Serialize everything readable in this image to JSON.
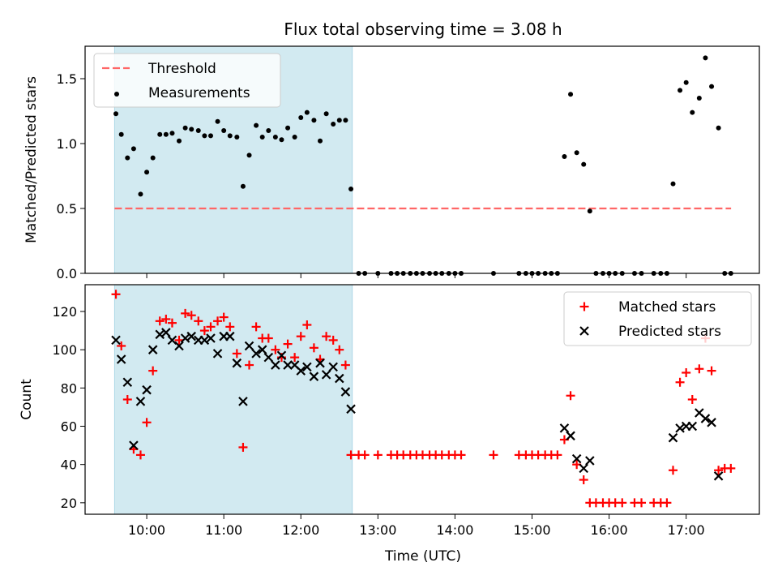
{
  "figure": {
    "title": "Flux total observing time = 3.08 h",
    "xlabel": "Time (UTC)"
  },
  "chart_data": [
    {
      "type": "scatter",
      "panel": "top",
      "ylabel": "Matched/Predicted stars",
      "xlim": [
        9.2,
        17.95
      ],
      "ylim": [
        0,
        1.75
      ],
      "yticks": [
        0.0,
        0.5,
        1.0,
        1.5
      ],
      "shaded_span": {
        "x": [
          9.583,
          12.667
        ],
        "color": "#add8e6"
      },
      "legend": {
        "position": "upper-left",
        "entries": [
          "Threshold",
          "Measurements"
        ]
      },
      "series": [
        {
          "name": "Threshold",
          "kind": "line",
          "color": "#ff6666",
          "dashed": true,
          "x": [
            9.583,
            17.583
          ],
          "y": [
            0.5,
            0.5
          ]
        },
        {
          "name": "Measurements",
          "kind": "dot",
          "color": "#000000",
          "x": [
            9.6,
            9.67,
            9.75,
            9.83,
            9.92,
            10.0,
            10.08,
            10.17,
            10.25,
            10.33,
            10.42,
            10.5,
            10.58,
            10.67,
            10.75,
            10.83,
            10.92,
            11.0,
            11.08,
            11.17,
            11.25,
            11.33,
            11.42,
            11.5,
            11.58,
            11.67,
            11.75,
            11.83,
            11.92,
            12.0,
            12.08,
            12.17,
            12.25,
            12.33,
            12.42,
            12.5,
            12.58,
            12.65,
            12.75,
            12.83,
            13.0,
            13.17,
            13.25,
            13.33,
            13.42,
            13.5,
            13.58,
            13.67,
            13.75,
            13.83,
            13.92,
            14.0,
            14.08,
            14.5,
            14.83,
            14.92,
            15.0,
            15.08,
            15.17,
            15.25,
            15.33,
            15.42,
            15.5,
            15.58,
            15.67,
            15.75,
            15.83,
            15.92,
            16.0,
            16.08,
            16.17,
            16.33,
            16.42,
            16.58,
            16.67,
            16.75,
            16.83,
            16.92,
            17.0,
            17.08,
            17.17,
            17.25,
            17.33,
            17.42,
            17.5,
            17.58
          ],
          "y": [
            1.23,
            1.07,
            0.89,
            0.96,
            0.61,
            0.78,
            0.89,
            1.07,
            1.07,
            1.08,
            1.02,
            1.12,
            1.11,
            1.1,
            1.06,
            1.06,
            1.17,
            1.1,
            1.06,
            1.05,
            0.67,
            0.91,
            1.14,
            1.05,
            1.1,
            1.05,
            1.03,
            1.12,
            1.05,
            1.2,
            1.24,
            1.18,
            1.02,
            1.23,
            1.15,
            1.18,
            1.18,
            0.65,
            0,
            0,
            0,
            0,
            0,
            0,
            0,
            0,
            0,
            0,
            0,
            0,
            0,
            0,
            0,
            0,
            0,
            0,
            0,
            0,
            0,
            0,
            0,
            0.9,
            1.38,
            0.93,
            0.84,
            0.48,
            0,
            0,
            0,
            0,
            0,
            0,
            0,
            0,
            0,
            0,
            0.69,
            1.41,
            1.47,
            1.24,
            1.35,
            1.66,
            1.44,
            1.12,
            0,
            0
          ]
        }
      ]
    },
    {
      "type": "scatter",
      "panel": "bottom",
      "ylabel": "Count",
      "xlim": [
        9.2,
        17.95
      ],
      "ylim": [
        14,
        134
      ],
      "yticks": [
        20,
        40,
        60,
        80,
        100,
        120
      ],
      "xticks": [
        10,
        11,
        12,
        13,
        14,
        15,
        16,
        17
      ],
      "xticklabels": [
        "10:00",
        "11:00",
        "12:00",
        "13:00",
        "14:00",
        "15:00",
        "16:00",
        "17:00"
      ],
      "shaded_span": {
        "x": [
          9.583,
          12.667
        ],
        "color": "#add8e6"
      },
      "legend": {
        "position": "upper-right",
        "entries": [
          "Matched stars",
          "Predicted stars"
        ]
      },
      "series": [
        {
          "name": "Matched stars",
          "kind": "plus",
          "color": "#ff0000",
          "x": [
            9.6,
            9.67,
            9.75,
            9.83,
            9.92,
            10.0,
            10.08,
            10.17,
            10.25,
            10.33,
            10.42,
            10.5,
            10.58,
            10.67,
            10.75,
            10.83,
            10.92,
            11.0,
            11.08,
            11.17,
            11.25,
            11.33,
            11.42,
            11.5,
            11.58,
            11.67,
            11.75,
            11.83,
            11.92,
            12.0,
            12.08,
            12.17,
            12.25,
            12.33,
            12.42,
            12.5,
            12.58,
            12.65,
            12.75,
            12.83,
            13.0,
            13.17,
            13.25,
            13.33,
            13.42,
            13.5,
            13.58,
            13.67,
            13.75,
            13.83,
            13.92,
            14.0,
            14.08,
            14.5,
            14.83,
            14.92,
            15.0,
            15.08,
            15.17,
            15.25,
            15.33,
            15.42,
            15.5,
            15.58,
            15.67,
            15.75,
            15.83,
            15.92,
            16.0,
            16.08,
            16.17,
            16.33,
            16.42,
            16.58,
            16.67,
            16.75,
            16.83,
            16.92,
            17.0,
            17.08,
            17.17,
            17.25,
            17.33,
            17.42,
            17.5,
            17.58
          ],
          "y": [
            129,
            102,
            74,
            48,
            45,
            62,
            89,
            115,
            116,
            114,
            105,
            119,
            118,
            115,
            110,
            112,
            115,
            117,
            112,
            98,
            49,
            92,
            112,
            106,
            106,
            100,
            96,
            103,
            96,
            107,
            113,
            101,
            95,
            107,
            105,
            100,
            92,
            45,
            45,
            45,
            45,
            45,
            45,
            45,
            45,
            45,
            45,
            45,
            45,
            45,
            45,
            45,
            45,
            45,
            45,
            45,
            45,
            45,
            45,
            45,
            45,
            53,
            76,
            40,
            32,
            20,
            20,
            20,
            20,
            20,
            20,
            20,
            20,
            20,
            20,
            20,
            37,
            83,
            88,
            74,
            90,
            106,
            89,
            37,
            38,
            38
          ]
        },
        {
          "name": "Predicted stars",
          "kind": "x",
          "color": "#000000",
          "x": [
            9.6,
            9.67,
            9.75,
            9.83,
            9.92,
            10.0,
            10.08,
            10.17,
            10.25,
            10.33,
            10.42,
            10.5,
            10.58,
            10.67,
            10.75,
            10.83,
            10.92,
            11.0,
            11.08,
            11.17,
            11.25,
            11.33,
            11.42,
            11.5,
            11.58,
            11.67,
            11.75,
            11.83,
            11.92,
            12.0,
            12.08,
            12.17,
            12.25,
            12.33,
            12.42,
            12.5,
            12.58,
            12.65,
            15.42,
            15.5,
            15.58,
            15.67,
            15.75,
            16.83,
            16.92,
            17.0,
            17.08,
            17.17,
            17.25,
            17.33,
            17.42
          ],
          "y": [
            105,
            95,
            83,
            50,
            73,
            79,
            100,
            108,
            109,
            105,
            102,
            106,
            107,
            105,
            105,
            106,
            98,
            107,
            107,
            93,
            73,
            102,
            98,
            100,
            96,
            92,
            97,
            92,
            92,
            89,
            91,
            86,
            93,
            87,
            91,
            85,
            78,
            69,
            59,
            55,
            43,
            38,
            42,
            54,
            59,
            60,
            60,
            67,
            64,
            62,
            34
          ]
        }
      ]
    }
  ]
}
